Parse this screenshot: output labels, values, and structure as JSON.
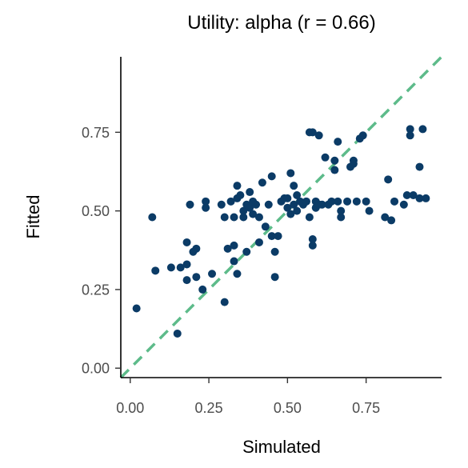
{
  "chart_data": {
    "type": "scatter",
    "title": "Utility: alpha (r = 0.66)",
    "xlabel": "Simulated",
    "ylabel": "Fitted",
    "xlim": [
      -0.03,
      0.99
    ],
    "ylim": [
      -0.03,
      0.99
    ],
    "xticks": [
      0,
      0.25,
      0.5,
      0.75
    ],
    "yticks": [
      0,
      0.25,
      0.5,
      0.75
    ],
    "xtick_labels": [
      "0.00",
      "0.25",
      "0.50",
      "0.75"
    ],
    "ytick_labels": [
      "0.00",
      "0.25",
      "0.50",
      "0.75"
    ],
    "grid": false,
    "reference_line": {
      "slope": 1,
      "intercept": 0,
      "style": "dashed",
      "color": "#5dbb8a"
    },
    "point_color": "#0b3b66",
    "points": [
      [
        0.02,
        0.19
      ],
      [
        0.07,
        0.48
      ],
      [
        0.08,
        0.31
      ],
      [
        0.13,
        0.32
      ],
      [
        0.15,
        0.11
      ],
      [
        0.16,
        0.32
      ],
      [
        0.18,
        0.33
      ],
      [
        0.18,
        0.4
      ],
      [
        0.18,
        0.28
      ],
      [
        0.19,
        0.52
      ],
      [
        0.2,
        0.37
      ],
      [
        0.21,
        0.38
      ],
      [
        0.21,
        0.29
      ],
      [
        0.23,
        0.25
      ],
      [
        0.24,
        0.51
      ],
      [
        0.24,
        0.53
      ],
      [
        0.26,
        0.3
      ],
      [
        0.29,
        0.52
      ],
      [
        0.3,
        0.48
      ],
      [
        0.3,
        0.21
      ],
      [
        0.31,
        0.38
      ],
      [
        0.32,
        0.53
      ],
      [
        0.33,
        0.39
      ],
      [
        0.33,
        0.34
      ],
      [
        0.33,
        0.48
      ],
      [
        0.34,
        0.58
      ],
      [
        0.34,
        0.54
      ],
      [
        0.34,
        0.3
      ],
      [
        0.35,
        0.55
      ],
      [
        0.36,
        0.5
      ],
      [
        0.36,
        0.48
      ],
      [
        0.37,
        0.52
      ],
      [
        0.37,
        0.37
      ],
      [
        0.38,
        0.56
      ],
      [
        0.38,
        0.51
      ],
      [
        0.39,
        0.49
      ],
      [
        0.39,
        0.53
      ],
      [
        0.4,
        0.52
      ],
      [
        0.41,
        0.48
      ],
      [
        0.41,
        0.4
      ],
      [
        0.42,
        0.59
      ],
      [
        0.43,
        0.45
      ],
      [
        0.44,
        0.52
      ],
      [
        0.45,
        0.42
      ],
      [
        0.45,
        0.61
      ],
      [
        0.46,
        0.29
      ],
      [
        0.46,
        0.37
      ],
      [
        0.47,
        0.42
      ],
      [
        0.48,
        0.53
      ],
      [
        0.49,
        0.54
      ],
      [
        0.5,
        0.51
      ],
      [
        0.5,
        0.54
      ],
      [
        0.51,
        0.62
      ],
      [
        0.51,
        0.49
      ],
      [
        0.52,
        0.52
      ],
      [
        0.52,
        0.58
      ],
      [
        0.53,
        0.55
      ],
      [
        0.53,
        0.5
      ],
      [
        0.54,
        0.53
      ],
      [
        0.55,
        0.52
      ],
      [
        0.56,
        0.53
      ],
      [
        0.57,
        0.75
      ],
      [
        0.57,
        0.48
      ],
      [
        0.58,
        0.75
      ],
      [
        0.58,
        0.41
      ],
      [
        0.58,
        0.39
      ],
      [
        0.59,
        0.53
      ],
      [
        0.59,
        0.51
      ],
      [
        0.6,
        0.74
      ],
      [
        0.6,
        0.52
      ],
      [
        0.61,
        0.52
      ],
      [
        0.62,
        0.67
      ],
      [
        0.63,
        0.52
      ],
      [
        0.64,
        0.53
      ],
      [
        0.65,
        0.66
      ],
      [
        0.65,
        0.63
      ],
      [
        0.66,
        0.72
      ],
      [
        0.66,
        0.53
      ],
      [
        0.67,
        0.5
      ],
      [
        0.67,
        0.48
      ],
      [
        0.69,
        0.53
      ],
      [
        0.7,
        0.64
      ],
      [
        0.71,
        0.66
      ],
      [
        0.71,
        0.65
      ],
      [
        0.72,
        0.53
      ],
      [
        0.73,
        0.73
      ],
      [
        0.74,
        0.74
      ],
      [
        0.75,
        0.53
      ],
      [
        0.76,
        0.5
      ],
      [
        0.81,
        0.48
      ],
      [
        0.82,
        0.6
      ],
      [
        0.83,
        0.47
      ],
      [
        0.84,
        0.53
      ],
      [
        0.87,
        0.52
      ],
      [
        0.88,
        0.55
      ],
      [
        0.89,
        0.76
      ],
      [
        0.89,
        0.74
      ],
      [
        0.9,
        0.55
      ],
      [
        0.92,
        0.64
      ],
      [
        0.92,
        0.54
      ],
      [
        0.93,
        0.76
      ],
      [
        0.94,
        0.54
      ]
    ]
  }
}
